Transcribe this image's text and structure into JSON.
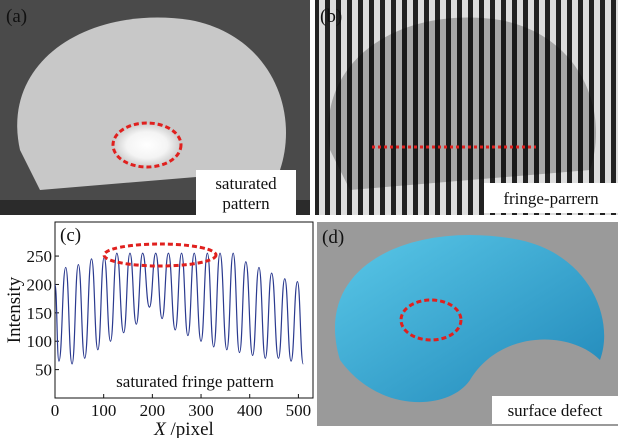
{
  "panels": [
    {
      "label": "(a)",
      "caption": [
        "saturated",
        "pattern"
      ]
    },
    {
      "label": "(b)",
      "caption": [
        "fringe-parrern"
      ]
    },
    {
      "label": "(d)",
      "caption": [
        "surface defect"
      ]
    }
  ],
  "chart_data": {
    "type": "line",
    "label": "(c)",
    "annotation": "saturated fringe pattern",
    "x_label": {
      "variable": "X",
      "unit": "/pixel"
    },
    "y_label": "Intensity",
    "xlim": [
      0,
      530
    ],
    "ylim": [
      0,
      310
    ],
    "xticks": [
      0,
      100,
      200,
      300,
      400,
      500
    ],
    "yticks": [
      50,
      100,
      150,
      200,
      250
    ],
    "color": "#2b3a8f",
    "x": [
      0,
      8,
      22,
      35,
      48,
      61,
      75,
      88,
      101,
      114,
      127,
      141,
      154,
      167,
      180,
      194,
      207,
      220,
      233,
      247,
      260,
      273,
      286,
      300,
      313,
      326,
      339,
      353,
      366,
      379,
      392,
      406,
      419,
      432,
      445,
      459,
      472,
      485,
      498,
      510
    ],
    "values": [
      200,
      65,
      230,
      60,
      235,
      70,
      245,
      85,
      248,
      100,
      255,
      115,
      255,
      130,
      255,
      160,
      255,
      140,
      255,
      120,
      255,
      110,
      255,
      100,
      255,
      90,
      255,
      85,
      255,
      80,
      240,
      75,
      230,
      70,
      220,
      70,
      210,
      65,
      205,
      60
    ]
  }
}
